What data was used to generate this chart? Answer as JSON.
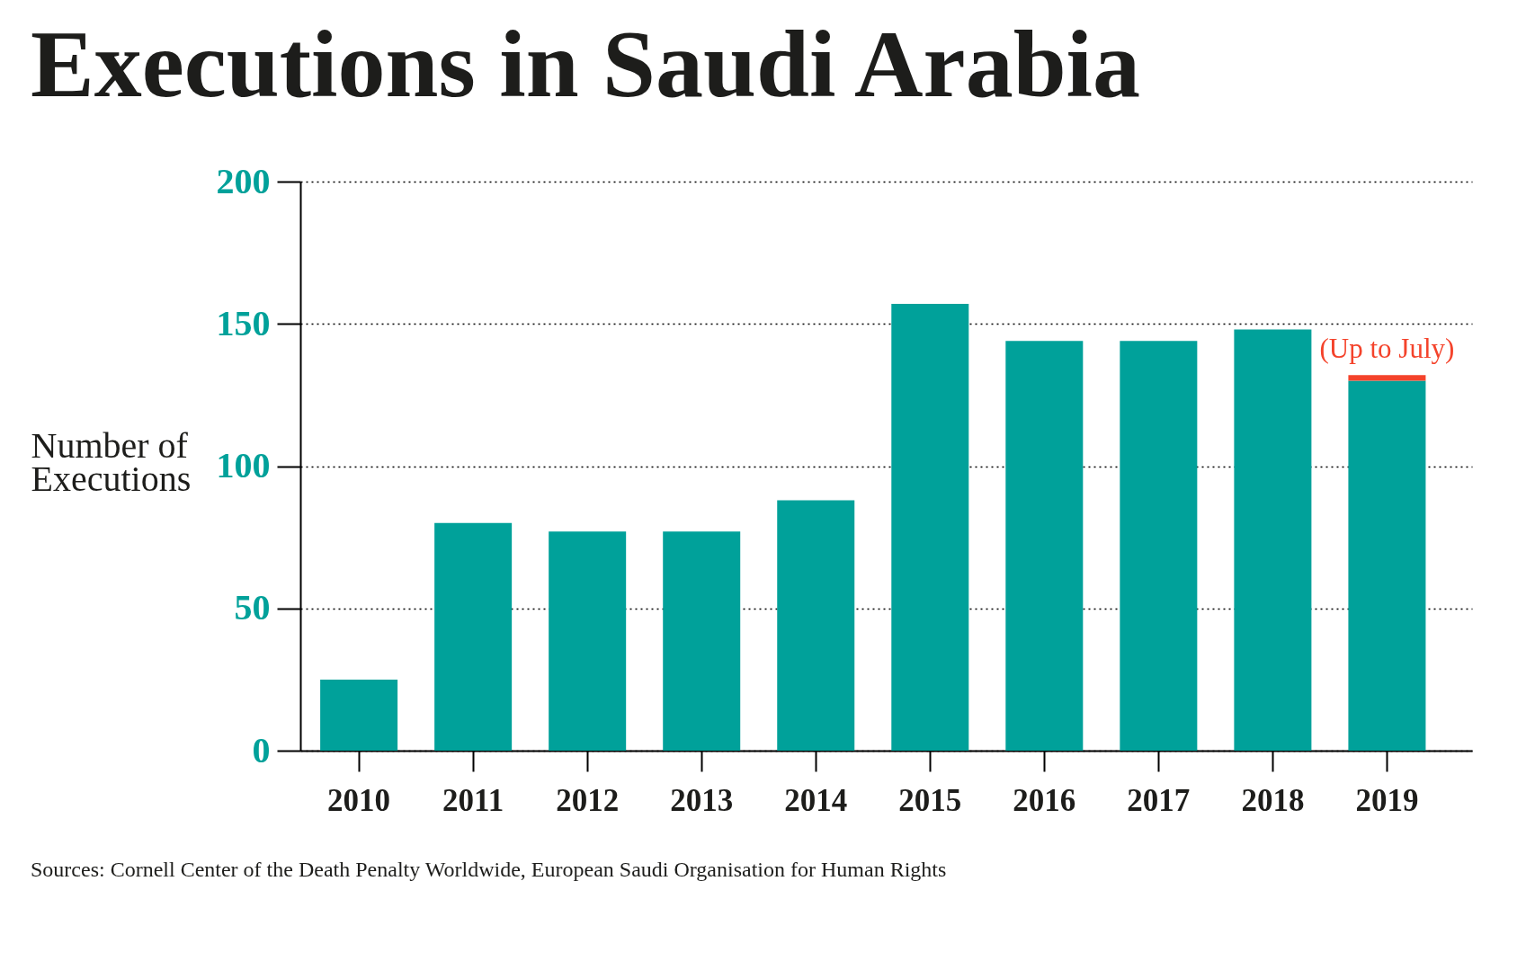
{
  "chart_data": {
    "type": "bar",
    "title": "Executions in Saudi Arabia",
    "ylabel": "Number of Executions",
    "categories": [
      "2010",
      "2011",
      "2012",
      "2013",
      "2014",
      "2015",
      "2016",
      "2017",
      "2018",
      "2019"
    ],
    "series": [
      {
        "color": "#00a19a",
        "values": [
          25,
          80,
          77,
          77,
          88,
          157,
          144,
          144,
          148,
          130
        ]
      },
      {
        "color": "#f4432b",
        "values": [
          null,
          null,
          null,
          null,
          null,
          null,
          null,
          null,
          null,
          2
        ]
      }
    ],
    "stacked": true,
    "ylim": [
      0,
      200
    ],
    "yticks": [
      0,
      50,
      100,
      150,
      200
    ],
    "grid": "y",
    "annotations": [
      {
        "text": "(Up to July)",
        "x": "2019",
        "y": 132
      },
      "Sources: Cornell Center of the Death Penalty Worldwide, European Saudi Organisation for Human Rights"
    ]
  }
}
